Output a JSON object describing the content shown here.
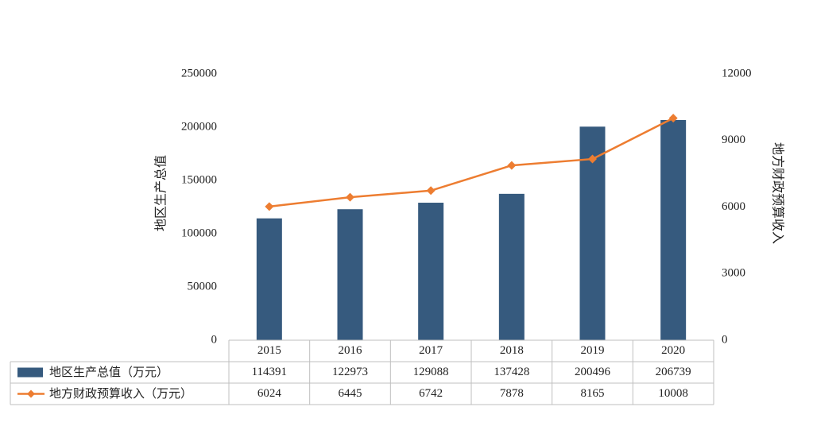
{
  "chart_data": {
    "type": "bar+line",
    "categories": [
      "2015",
      "2016",
      "2017",
      "2018",
      "2019",
      "2020"
    ],
    "series": [
      {
        "name": "地区生产总值（万元）",
        "type": "bar",
        "axis": "left",
        "color": "#365a7e",
        "values": [
          114391,
          122973,
          129088,
          137428,
          200496,
          206739
        ]
      },
      {
        "name": "地方财政预算收入（万元）",
        "type": "line",
        "axis": "right",
        "color": "#ed7d31",
        "marker": "diamond",
        "values": [
          6024,
          6445,
          6742,
          7878,
          8165,
          10008
        ]
      }
    ],
    "ylabel": "地区生产总值",
    "y2label": "地方财政预算收入",
    "ylim": [
      0,
      250000
    ],
    "y2lim": [
      0,
      12000
    ],
    "yticks": [
      "0",
      "50000",
      "100000",
      "150000",
      "200000",
      "250000"
    ],
    "y2ticks": [
      "0",
      "3000",
      "6000",
      "9000",
      "12000"
    ],
    "grid": false,
    "legend": "data-table"
  }
}
